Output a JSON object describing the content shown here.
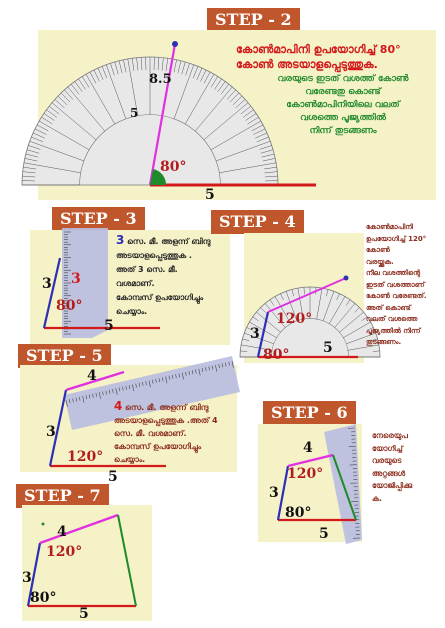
{
  "steps": [
    {
      "label": "STEP - 2"
    },
    {
      "label": "STEP - 3"
    },
    {
      "label": "STEP - 4"
    },
    {
      "label": "STEP - 5"
    },
    {
      "label": "STEP - 6"
    },
    {
      "label": "STEP - 7"
    }
  ],
  "step2": {
    "heading": [
      "കോൺമാപിനി ഉപയോഗിച്ച് 80°",
      "കോൺ അടയാളപ്പെടുത്തുക."
    ],
    "body": [
      "വരയുടെ ഇടത് വശത്ത് കോൺ",
      "വരേണ്ടതു കൊണ്ട്",
      "കോൺമാപിനിയിലെ വലത്",
      "വശത്തെ പൂജ്യത്തിൽ",
      "നിന്ന് തുടങ്ങണം"
    ],
    "side_top": "8.5",
    "side_mid": "5",
    "angle": "80°",
    "base": "5"
  },
  "step3": {
    "text": [
      {
        "num": "3",
        "rest": " സെ. മീ. അളന്ന് ബിന്ദു"
      },
      {
        "num": "",
        "rest": "അടയാളപ്പെടുത്തുക ."
      },
      {
        "num": "",
        "rest": "അത് 3 സെ. മീ."
      },
      {
        "num": "",
        "rest": "വശമാണ്."
      },
      {
        "num": "",
        "rest": "കോമ്പസ് ഉപയോഗിച്ചും"
      },
      {
        "num": "",
        "rest": "ചെയ്യാം."
      }
    ],
    "side": "3",
    "side_red": "3",
    "angle": "80°",
    "base": "5"
  },
  "step4": {
    "text": [
      "കോൺമാപിനി",
      "ഉപയോഗിച്ച് 120°",
      "കോൺ",
      "വരയ്ക്കുക.",
      "നീല വശത്തിന്റെ",
      "ഇടത് വശത്താണ്",
      "കോൺ വരേണ്ടത്.",
      "അത് കൊണ്ട്",
      "വലത് വശത്തെ",
      "പൂജ്യത്തിൽ നിന്ന്",
      "തുടങ്ങണം."
    ],
    "side": "3",
    "angle_top": "120°",
    "angle_bottom": "80°",
    "base": "5"
  },
  "step5": {
    "text": [
      {
        "num": "4",
        "rest": " സെ. മീ. അളന്ന് ബിന്ദു"
      },
      {
        "num": "",
        "rest": "അടയാളപ്പെടുത്തുക .അത് 4"
      },
      {
        "num": "",
        "rest": "സെ. മീ. വശമാണ്."
      },
      {
        "num": "",
        "rest": "കോമ്പസ് ഉപയോഗിച്ചും"
      },
      {
        "num": "",
        "rest": "ചെയ്യാം."
      }
    ],
    "top": "4",
    "side": "3",
    "angle": "120°",
    "base": "5"
  },
  "step6": {
    "text": [
      "നേരെയുപ",
      "യോഗിച്ച്",
      "വരയുടെ",
      "അറ്റങ്ങൾ",
      "യോജിപ്പിക്കു",
      "ക."
    ],
    "top": "4",
    "side": "3",
    "angle_top": "120°",
    "angle_bottom": "80°",
    "base": "5"
  },
  "step7": {
    "top": "4",
    "side": "3",
    "angle_top": "120°",
    "angle_bottom": "80°",
    "base": "5"
  },
  "colors": {
    "badge": "#c0562b",
    "panel": "#f6f2c8",
    "red": "#d21a1a",
    "green": "#1f8a2a",
    "blue": "#2d2fb5",
    "magenta": "#e030e0",
    "ruler": "#b9bde0"
  }
}
